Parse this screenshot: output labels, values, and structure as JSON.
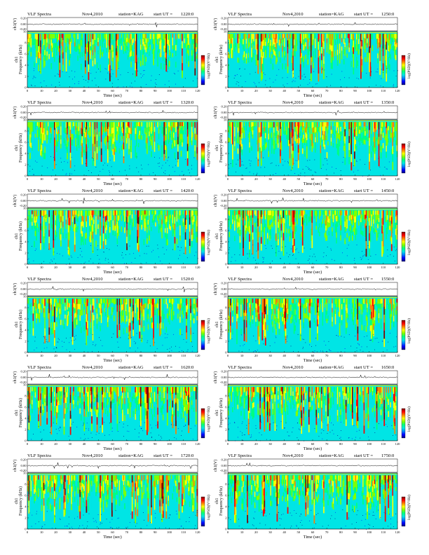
{
  "page": {
    "title_prefix": "VLF Spectra",
    "date": "Nov4,2010",
    "station": "station=KAG",
    "start_label": "start  UT  ="
  },
  "panel_labels": {
    "ts_ylabel": "ch1(V)",
    "spec_ylabel_channel": "ch1",
    "spec_ylabel": "Frequency (kHz)",
    "xlabel": "Time (sec)",
    "colorbar_label": "log(PSD)(V²/Hz)"
  },
  "colors": {
    "colormap": [
      "#000080",
      "#0000ff",
      "#0080ff",
      "#00e5e5",
      "#00ff80",
      "#80ff00",
      "#ffff00",
      "#ff8000",
      "#ff0000",
      "#800000"
    ],
    "background": "#00e5e5",
    "trace": "#000000"
  },
  "chart_data": [
    {
      "type": "heatmap",
      "panel": "1",
      "start_ut": "1220:0",
      "xlim": [
        0,
        120
      ],
      "ylim": [
        0,
        10
      ],
      "x_ticks": [
        0,
        10,
        20,
        30,
        40,
        50,
        60,
        70,
        80,
        90,
        100,
        110,
        120
      ],
      "y_ticks": [
        0,
        2,
        4,
        6,
        8,
        10
      ],
      "ts_ylim": [
        -0.2,
        0.2
      ],
      "ts_ticks": [
        "0.20",
        "0.00",
        "-0.20"
      ],
      "xlabel": "Time (sec)",
      "ylabel": "Frequency (kHz)"
    },
    {
      "type": "heatmap",
      "panel": "2",
      "start_ut": "1250:0",
      "xlim": [
        0,
        120
      ],
      "ylim": [
        0,
        10
      ],
      "x_ticks": [
        0,
        10,
        20,
        30,
        40,
        50,
        60,
        70,
        80,
        90,
        100,
        110,
        120
      ],
      "y_ticks": [
        0,
        2,
        4,
        6,
        8,
        10
      ],
      "ts_ylim": [
        -0.2,
        0.2
      ],
      "ts_ticks": [
        "0.20",
        "0.00",
        "-0.20"
      ],
      "xlabel": "Time (sec)",
      "ylabel": "Frequency (kHz)"
    },
    {
      "type": "heatmap",
      "panel": "3",
      "start_ut": "1320:0",
      "xlim": [
        0,
        120
      ],
      "ylim": [
        0,
        10
      ],
      "x_ticks": [
        0,
        10,
        20,
        30,
        40,
        50,
        60,
        70,
        80,
        90,
        100,
        110,
        120
      ],
      "y_ticks": [
        0,
        2,
        4,
        6,
        8,
        10
      ],
      "ts_ylim": [
        -0.2,
        0.2
      ],
      "ts_ticks": [
        "0.20",
        "0.00",
        "-0.20"
      ],
      "xlabel": "Time (sec)",
      "ylabel": "Frequency (kHz)"
    },
    {
      "type": "heatmap",
      "panel": "4",
      "start_ut": "1350:0",
      "xlim": [
        0,
        120
      ],
      "ylim": [
        0,
        10
      ],
      "x_ticks": [
        0,
        10,
        20,
        30,
        40,
        50,
        60,
        70,
        80,
        90,
        100,
        110,
        120
      ],
      "y_ticks": [
        0,
        2,
        4,
        6,
        8,
        10
      ],
      "ts_ylim": [
        -0.2,
        0.2
      ],
      "ts_ticks": [
        "0.20",
        "0.00",
        "-0.20"
      ],
      "xlabel": "Time (sec)",
      "ylabel": "Frequency (kHz)"
    },
    {
      "type": "heatmap",
      "panel": "5",
      "start_ut": "1420:0",
      "xlim": [
        0,
        120
      ],
      "ylim": [
        0,
        10
      ],
      "x_ticks": [
        0,
        10,
        20,
        30,
        40,
        50,
        60,
        70,
        80,
        90,
        100,
        110,
        120
      ],
      "y_ticks": [
        0,
        2,
        4,
        6,
        8,
        10
      ],
      "ts_ylim": [
        -0.2,
        0.2
      ],
      "ts_ticks": [
        "0.20",
        "0.00",
        "-0.20"
      ],
      "xlabel": "Time (sec)",
      "ylabel": "Frequency (kHz)"
    },
    {
      "type": "heatmap",
      "panel": "6",
      "start_ut": "1450:0",
      "xlim": [
        0,
        120
      ],
      "ylim": [
        0,
        10
      ],
      "x_ticks": [
        0,
        10,
        20,
        30,
        40,
        50,
        60,
        70,
        80,
        90,
        100,
        110,
        120
      ],
      "y_ticks": [
        0,
        2,
        4,
        6,
        8,
        10
      ],
      "ts_ylim": [
        -0.2,
        0.2
      ],
      "ts_ticks": [
        "0.20",
        "0.00",
        "-0.20"
      ],
      "xlabel": "Time (sec)",
      "ylabel": "Frequency (kHz)"
    },
    {
      "type": "heatmap",
      "panel": "7",
      "start_ut": "1520:0",
      "xlim": [
        0,
        120
      ],
      "ylim": [
        0,
        10
      ],
      "x_ticks": [
        0,
        10,
        20,
        30,
        40,
        50,
        60,
        70,
        80,
        90,
        100,
        110,
        120
      ],
      "y_ticks": [
        0,
        2,
        4,
        6,
        8,
        10
      ],
      "ts_ylim": [
        -0.2,
        0.2
      ],
      "ts_ticks": [
        "0.20",
        "0.00",
        "-0.20"
      ],
      "xlabel": "Time (sec)",
      "ylabel": "Frequency (kHz)"
    },
    {
      "type": "heatmap",
      "panel": "8",
      "start_ut": "1550:0",
      "xlim": [
        0,
        120
      ],
      "ylim": [
        0,
        10
      ],
      "x_ticks": [
        0,
        10,
        20,
        30,
        40,
        50,
        60,
        70,
        80,
        90,
        100,
        110,
        120
      ],
      "y_ticks": [
        0,
        2,
        4,
        6,
        8,
        10
      ],
      "ts_ylim": [
        -0.2,
        0.2
      ],
      "ts_ticks": [
        "0.20",
        "0.00",
        "-0.20"
      ],
      "xlabel": "Time (sec)",
      "ylabel": "Frequency (kHz)"
    },
    {
      "type": "heatmap",
      "panel": "9",
      "start_ut": "1620:0",
      "xlim": [
        0,
        120
      ],
      "ylim": [
        0,
        10
      ],
      "x_ticks": [
        0,
        10,
        20,
        30,
        40,
        50,
        60,
        70,
        80,
        90,
        100,
        110,
        120
      ],
      "y_ticks": [
        0,
        2,
        4,
        6,
        8,
        10
      ],
      "ts_ylim": [
        -0.2,
        0.2
      ],
      "ts_ticks": [
        "0.20",
        "0.00",
        "-0.20"
      ],
      "xlabel": "Time (sec)",
      "ylabel": "Frequency (kHz)"
    },
    {
      "type": "heatmap",
      "panel": "10",
      "start_ut": "1650:0",
      "xlim": [
        0,
        120
      ],
      "ylim": [
        0,
        10
      ],
      "x_ticks": [
        0,
        10,
        20,
        30,
        40,
        50,
        60,
        70,
        80,
        90,
        100,
        110,
        120
      ],
      "y_ticks": [
        0,
        2,
        4,
        6,
        8,
        10
      ],
      "ts_ylim": [
        -0.2,
        0.2
      ],
      "ts_ticks": [
        "0.20",
        "0.00",
        "-0.20"
      ],
      "xlabel": "Time (sec)",
      "ylabel": "Frequency (kHz)"
    },
    {
      "type": "heatmap",
      "panel": "11",
      "start_ut": "1720:0",
      "xlim": [
        0,
        120
      ],
      "ylim": [
        0,
        10
      ],
      "x_ticks": [
        0,
        10,
        20,
        30,
        40,
        50,
        60,
        70,
        80,
        90,
        100,
        110,
        120
      ],
      "y_ticks": [
        0,
        2,
        4,
        6,
        8,
        10
      ],
      "ts_ylim": [
        -0.2,
        0.2
      ],
      "ts_ticks": [
        "0.20",
        "0.00",
        "-0.20"
      ],
      "xlabel": "Time (sec)",
      "ylabel": "Frequency (kHz)"
    },
    {
      "type": "heatmap",
      "panel": "12",
      "start_ut": "1750:0",
      "xlim": [
        0,
        120
      ],
      "ylim": [
        0,
        10
      ],
      "x_ticks": [
        0,
        10,
        20,
        30,
        40,
        50,
        60,
        70,
        80,
        90,
        100,
        110,
        120
      ],
      "y_ticks": [
        0,
        2,
        4,
        6,
        8,
        10
      ],
      "ts_ylim": [
        -0.2,
        0.2
      ],
      "ts_ticks": [
        "0.20",
        "0.00",
        "-0.20"
      ],
      "xlabel": "Time (sec)",
      "ylabel": "Frequency (kHz)"
    }
  ]
}
